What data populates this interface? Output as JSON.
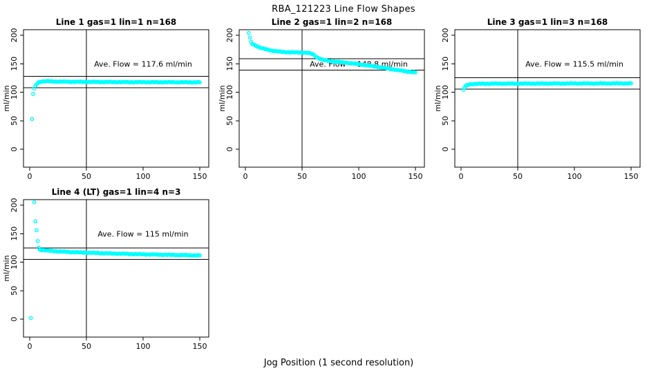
{
  "figure": {
    "title": "RBA_121223  Line Flow Shapes",
    "xlabel": "Jog Position (1 second resolution)"
  },
  "colors": {
    "points": "#00FFFF",
    "axis": "#000000",
    "background": "#FFFFFF"
  },
  "chart_data": [
    {
      "type": "scatter",
      "title": "Line 1 gas=1 lin=1 n=168",
      "annotation": "Ave. Flow =  117.6  ml/min",
      "ave_flow": 117.6,
      "ylabel": "ml/min",
      "x_ticks": [
        0,
        50,
        100,
        150
      ],
      "y_ticks": [
        0,
        50,
        100,
        150,
        200
      ],
      "xlim": [
        -5.5,
        158
      ],
      "ylim": [
        -31.5,
        209.7
      ],
      "ref_vline": 50,
      "ref_hlines": [
        127.6,
        107.6
      ],
      "isolated_points": [
        [
          2,
          53
        ],
        [
          3,
          97
        ]
      ],
      "band_keypoints": [
        [
          4,
          106
        ],
        [
          5,
          111
        ],
        [
          6,
          114
        ],
        [
          7,
          116
        ],
        [
          8,
          117.5
        ],
        [
          10,
          118.6
        ],
        [
          13,
          119.2
        ],
        [
          16,
          119.2
        ],
        [
          20,
          118.9
        ],
        [
          25,
          118.5
        ],
        [
          30,
          118.4
        ],
        [
          40,
          118.2
        ],
        [
          50,
          118.1
        ],
        [
          60,
          118.0
        ],
        [
          70,
          117.9
        ],
        [
          80,
          117.8
        ],
        [
          90,
          117.7
        ],
        [
          100,
          117.7
        ],
        [
          110,
          117.6
        ],
        [
          120,
          117.6
        ],
        [
          130,
          117.5
        ],
        [
          140,
          117.5
        ],
        [
          150,
          117.4
        ]
      ]
    },
    {
      "type": "scatter",
      "title": "Line 2 gas=1 lin=2 n=168",
      "annotation": "Ave. Flow =  148.8  ml/min",
      "ave_flow": 148.8,
      "ylabel": "ml/min",
      "x_ticks": [
        0,
        50,
        100,
        150
      ],
      "y_ticks": [
        0,
        50,
        100,
        150,
        200
      ],
      "xlim": [
        -5.5,
        158
      ],
      "ylim": [
        -31.5,
        209.7
      ],
      "ref_vline": 50,
      "ref_hlines": [
        158.8,
        138.8
      ],
      "isolated_points": [
        [
          3,
          204
        ],
        [
          4,
          196
        ],
        [
          5,
          188.5
        ]
      ],
      "band_keypoints": [
        [
          6,
          185
        ],
        [
          7,
          184
        ],
        [
          8,
          183
        ],
        [
          10,
          181
        ],
        [
          12,
          179
        ],
        [
          14,
          177.5
        ],
        [
          16,
          176.5
        ],
        [
          18,
          175.5
        ],
        [
          20,
          174.5
        ],
        [
          23,
          173.2
        ],
        [
          26,
          172.2
        ],
        [
          30,
          171.2
        ],
        [
          35,
          170.4
        ],
        [
          40,
          170
        ],
        [
          45,
          169.8
        ],
        [
          50,
          169.6
        ],
        [
          54,
          169.2
        ],
        [
          57,
          168.3
        ],
        [
          59,
          167
        ],
        [
          61,
          164.5
        ],
        [
          63,
          161.5
        ],
        [
          65,
          159.5
        ],
        [
          67,
          157.8
        ],
        [
          69,
          156.5
        ],
        [
          72,
          155.4
        ],
        [
          75,
          154.6
        ],
        [
          80,
          153.6
        ],
        [
          85,
          152.6
        ],
        [
          90,
          151.5
        ],
        [
          95,
          150.4
        ],
        [
          100,
          149.2
        ],
        [
          105,
          147.8
        ],
        [
          110,
          146.4
        ],
        [
          115,
          144.9
        ],
        [
          120,
          143.4
        ],
        [
          125,
          141.8
        ],
        [
          130,
          140.2
        ],
        [
          135,
          138.6
        ],
        [
          140,
          137.1
        ],
        [
          144,
          136
        ],
        [
          147,
          135.3
        ],
        [
          150,
          134.7
        ]
      ]
    },
    {
      "type": "scatter",
      "title": "Line 3 gas=1 lin=3 n=168",
      "annotation": "Ave. Flow =  115.5  ml/min",
      "ave_flow": 115.5,
      "ylabel": "ml/min",
      "x_ticks": [
        0,
        50,
        100,
        150
      ],
      "y_ticks": [
        0,
        50,
        100,
        150,
        200
      ],
      "xlim": [
        -5.5,
        158
      ],
      "ylim": [
        -31.5,
        209.7
      ],
      "ref_vline": 50,
      "ref_hlines": [
        125.5,
        105.5
      ],
      "isolated_points": [],
      "band_keypoints": [
        [
          2,
          104
        ],
        [
          3,
          108
        ],
        [
          4,
          110.5
        ],
        [
          5,
          112
        ],
        [
          6,
          113
        ],
        [
          8,
          113.9
        ],
        [
          10,
          114.3
        ],
        [
          15,
          114.7
        ],
        [
          20,
          114.9
        ],
        [
          30,
          115
        ],
        [
          40,
          115.1
        ],
        [
          50,
          115.1
        ],
        [
          60,
          115.2
        ],
        [
          70,
          115.2
        ],
        [
          80,
          115.3
        ],
        [
          90,
          115.3
        ],
        [
          100,
          115.4
        ],
        [
          120,
          115.4
        ],
        [
          140,
          115.5
        ],
        [
          150,
          115.5
        ]
      ]
    },
    {
      "type": "scatter",
      "title": "Line 4 (LT) gas=1 lin=4 n=3",
      "annotation": "Ave. Flow =  115  ml/min",
      "ave_flow": 115,
      "ylabel": "ml/min",
      "x_ticks": [
        0,
        50,
        100,
        150
      ],
      "y_ticks": [
        0,
        50,
        100,
        150,
        200
      ],
      "xlim": [
        -5.5,
        158
      ],
      "ylim": [
        -31.5,
        209.7
      ],
      "ref_vline": 50,
      "ref_hlines": [
        125,
        105
      ],
      "isolated_points": [
        [
          1,
          2
        ],
        [
          4,
          205
        ],
        [
          5,
          171.5
        ],
        [
          6,
          156
        ],
        [
          7,
          137
        ],
        [
          8,
          125.5
        ]
      ],
      "band_keypoints": [
        [
          9,
          122
        ],
        [
          10,
          121.6
        ],
        [
          12,
          121.1
        ],
        [
          15,
          120.4
        ],
        [
          20,
          119.6
        ],
        [
          25,
          118.9
        ],
        [
          30,
          118.3
        ],
        [
          35,
          117.8
        ],
        [
          40,
          117.4
        ],
        [
          45,
          117
        ],
        [
          50,
          116.7
        ],
        [
          60,
          116
        ],
        [
          70,
          115.3
        ],
        [
          80,
          114.7
        ],
        [
          90,
          114.2
        ],
        [
          100,
          113.7
        ],
        [
          110,
          113.3
        ],
        [
          120,
          112.9
        ],
        [
          130,
          112.5
        ],
        [
          140,
          112.1
        ],
        [
          150,
          111.8
        ]
      ]
    }
  ]
}
